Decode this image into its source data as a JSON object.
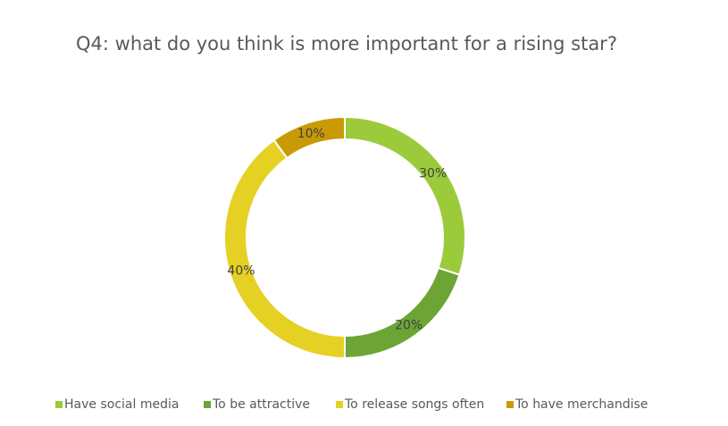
{
  "chart_data": {
    "type": "donut",
    "title": "Q4: what do you think is more important for a rising star?",
    "categories": [
      "Have social media",
      "To be attractive",
      "To release songs often",
      "To have merchandise"
    ],
    "values": [
      30,
      20,
      40,
      10
    ],
    "value_labels": [
      "30%",
      "20%",
      "40%",
      "10%"
    ],
    "colors": [
      "#9bcb3b",
      "#6ca535",
      "#e5d024",
      "#c99a06"
    ],
    "legend": "bottom"
  }
}
